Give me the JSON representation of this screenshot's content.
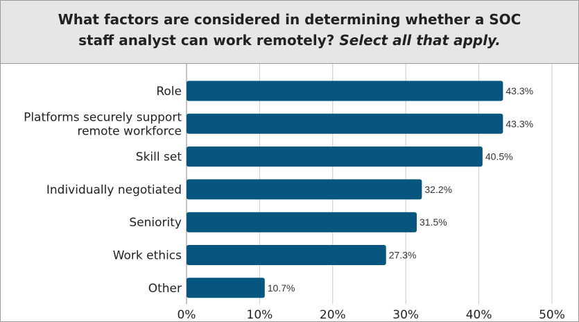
{
  "title": {
    "line1": "What factors are considered in determining whether a SOC",
    "line2_main": "staff analyst can work remotely?",
    "line2_emph": "Select all that apply."
  },
  "colors": {
    "bar": "#07567f",
    "grid": "#c8c8c8",
    "title_band": "#e6e6e6"
  },
  "chart_data": {
    "type": "bar",
    "orientation": "horizontal",
    "title": "What factors are considered in determining whether a SOC staff analyst can work remotely? Select all that apply.",
    "categories": [
      [
        "Role"
      ],
      [
        "Platforms securely support",
        "remote workforce"
      ],
      [
        "Skill set"
      ],
      [
        "Individually negotiated"
      ],
      [
        "Seniority"
      ],
      [
        "Work ethics"
      ],
      [
        "Other"
      ]
    ],
    "values": [
      43.3,
      43.3,
      40.5,
      32.2,
      31.5,
      27.3,
      10.7
    ],
    "value_labels": [
      "43.3%",
      "43.3%",
      "40.5%",
      "32.2%",
      "31.5%",
      "27.3%",
      "10.7%"
    ],
    "xlim": [
      0,
      50
    ],
    "xticks": [
      0,
      10,
      20,
      30,
      40,
      50
    ],
    "xtick_labels": [
      "0%",
      "10%",
      "20%",
      "30%",
      "40%",
      "50%"
    ],
    "grid": true,
    "legend": "none"
  }
}
